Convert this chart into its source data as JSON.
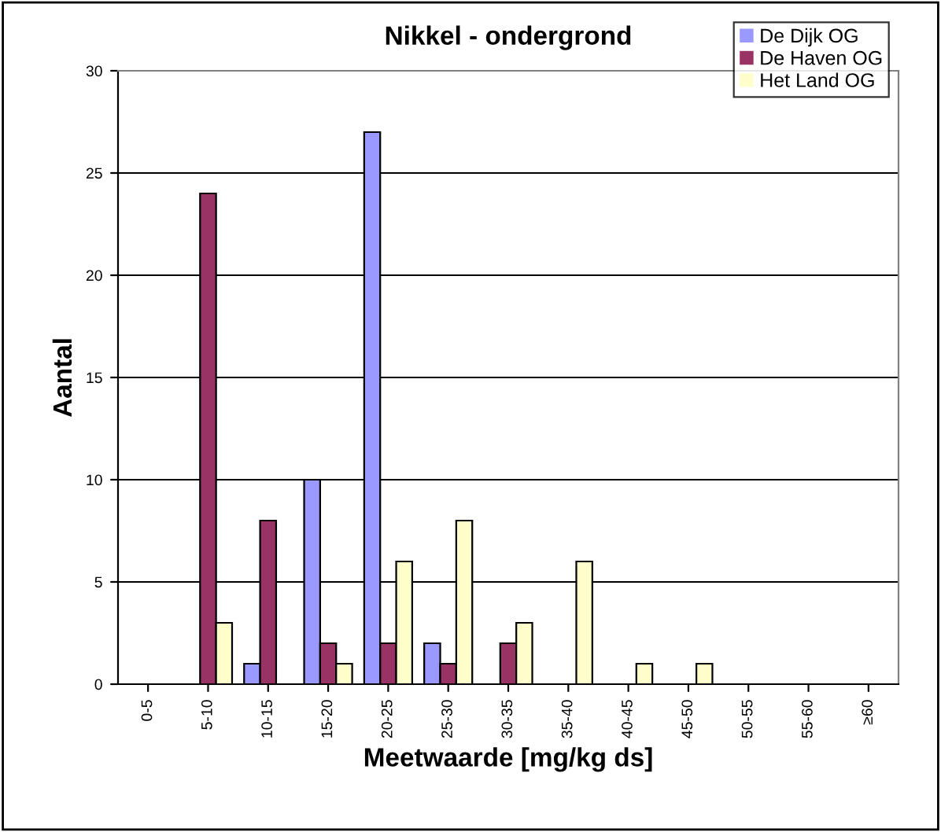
{
  "chart_data": {
    "type": "bar",
    "title": "Nikkel - ondergrond",
    "xlabel": "Meetwaarde [mg/kg ds]",
    "ylabel": "Aantal",
    "categories": [
      "0-5",
      "5-10",
      "10-15",
      "15-20",
      "20-25",
      "25-30",
      "30-35",
      "35-40",
      "40-45",
      "45-50",
      "50-55",
      "55-60",
      "≥60"
    ],
    "series": [
      {
        "name": "De Dijk OG",
        "color": "#9999ff",
        "values": [
          0,
          0,
          1,
          10,
          27,
          2,
          0,
          0,
          0,
          0,
          0,
          0,
          0
        ]
      },
      {
        "name": "De Haven OG",
        "color": "#993366",
        "values": [
          0,
          24,
          8,
          2,
          2,
          1,
          2,
          0,
          0,
          0,
          0,
          0,
          0
        ]
      },
      {
        "name": "Het Land OG",
        "color": "#ffffcc",
        "values": [
          0,
          3,
          0,
          1,
          6,
          8,
          3,
          6,
          1,
          1,
          0,
          0,
          0
        ]
      }
    ],
    "ylim": [
      0,
      30
    ],
    "yticks": [
      0,
      5,
      10,
      15,
      20,
      25,
      30
    ],
    "grid": "y",
    "legend": "top right"
  }
}
